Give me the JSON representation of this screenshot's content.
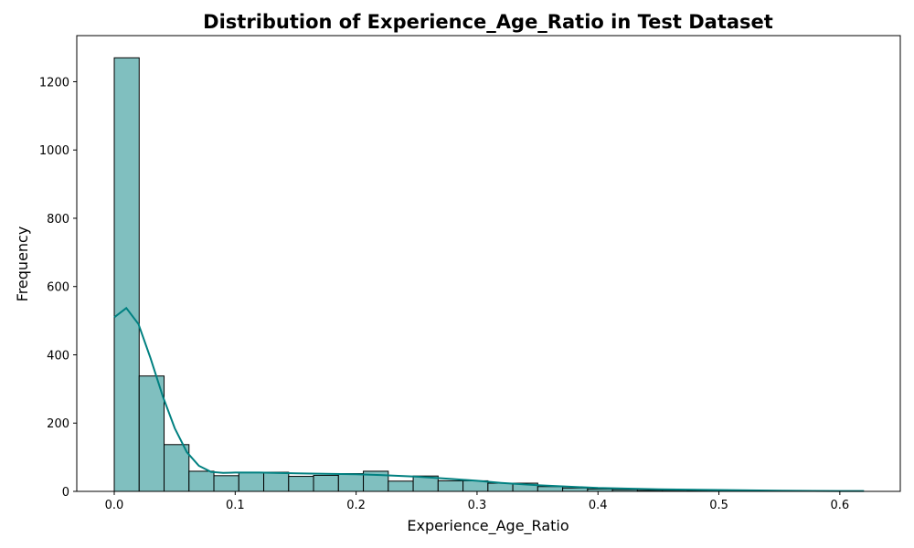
{
  "chart_data": {
    "type": "histogram",
    "title": "Distribution of Experience_Age_Ratio in Test Dataset",
    "xlabel": "Experience_Age_Ratio",
    "ylabel": "Frequency",
    "xlim": [
      -0.031,
      0.65
    ],
    "ylim": [
      0,
      1335
    ],
    "xticks": [
      0.0,
      0.1,
      0.2,
      0.3,
      0.4,
      0.5,
      0.6
    ],
    "xtick_labels": [
      "0.0",
      "0.1",
      "0.2",
      "0.3",
      "0.4",
      "0.5",
      "0.6"
    ],
    "yticks": [
      0,
      200,
      400,
      600,
      800,
      1000,
      1200
    ],
    "ytick_labels": [
      "0",
      "200",
      "400",
      "600",
      "800",
      "1000",
      "1200"
    ],
    "bin_start": 0.0,
    "bin_width": 0.0206,
    "counts": [
      1270,
      338,
      137,
      59,
      46,
      56,
      56,
      44,
      47,
      52,
      59,
      30,
      45,
      31,
      31,
      24,
      24,
      14,
      10,
      7,
      5,
      3,
      3,
      2,
      2,
      2,
      1,
      1,
      1,
      1
    ],
    "kde": {
      "x": [
        0.0,
        0.01,
        0.02,
        0.03,
        0.04,
        0.05,
        0.06,
        0.07,
        0.08,
        0.09,
        0.1,
        0.12,
        0.15,
        0.18,
        0.2,
        0.22,
        0.25,
        0.28,
        0.3,
        0.32,
        0.35,
        0.4,
        0.45,
        0.5,
        0.55,
        0.6,
        0.62
      ],
      "y": [
        510,
        537,
        490,
        390,
        280,
        185,
        115,
        75,
        57,
        54,
        55,
        55,
        53,
        51,
        50,
        48,
        43,
        36,
        31,
        25,
        18,
        10,
        6,
        4,
        2,
        1,
        1
      ]
    },
    "grid": false,
    "colors": {
      "bar_fill": "#80bfbf",
      "bar_edge": "#000000",
      "kde_line": "#008080"
    }
  }
}
